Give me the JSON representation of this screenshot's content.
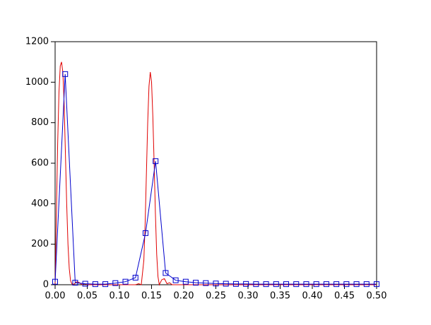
{
  "chart_data": {
    "type": "line",
    "xlim": [
      0,
      0.5
    ],
    "ylim": [
      0,
      1200
    ],
    "xticks": [
      {
        "value": 0,
        "label": "0.00"
      },
      {
        "value": 0.05,
        "label": "0.05"
      },
      {
        "value": 0.1,
        "label": "0.10"
      },
      {
        "value": 0.15,
        "label": "0.15"
      },
      {
        "value": 0.2,
        "label": "0.20"
      },
      {
        "value": 0.25,
        "label": "0.25"
      },
      {
        "value": 0.3,
        "label": "0.30"
      },
      {
        "value": 0.35,
        "label": "0.35"
      },
      {
        "value": 0.4,
        "label": "0.40"
      },
      {
        "value": 0.45,
        "label": "0.45"
      },
      {
        "value": 0.5,
        "label": "0.50"
      }
    ],
    "yticks": [
      0,
      200,
      400,
      600,
      800,
      1000,
      1200
    ],
    "series": [
      {
        "color": "#e00000",
        "marker": "none",
        "x": [
          0,
          0.002,
          0.004,
          0.006,
          0.008,
          0.01,
          0.012,
          0.014,
          0.016,
          0.018,
          0.02,
          0.022,
          0.024,
          0.026,
          0.028,
          0.03,
          0.034,
          0.038,
          0.042,
          0.046,
          0.05,
          0.06,
          0.07,
          0.08,
          0.09,
          0.1,
          0.11,
          0.12,
          0.125,
          0.13,
          0.134,
          0.138,
          0.14,
          0.142,
          0.144,
          0.146,
          0.148,
          0.15,
          0.152,
          0.154,
          0.156,
          0.158,
          0.16,
          0.162,
          0.166,
          0.17,
          0.174,
          0.178,
          0.182,
          0.19,
          0.2,
          0.25,
          0.3,
          0.35,
          0.4,
          0.45,
          0.5
        ],
        "values": [
          0,
          350,
          700,
          950,
          1080,
          1100,
          1050,
          900,
          650,
          400,
          200,
          80,
          20,
          5,
          0,
          5,
          15,
          10,
          0,
          5,
          0,
          0,
          0,
          0,
          0,
          0,
          0,
          0,
          0,
          5,
          0,
          120,
          300,
          550,
          800,
          980,
          1050,
          1000,
          830,
          600,
          350,
          150,
          40,
          0,
          25,
          30,
          5,
          10,
          0,
          0,
          0,
          0,
          0,
          0,
          0,
          0,
          0
        ]
      },
      {
        "color": "#0000cc",
        "marker": "square",
        "x": [
          0,
          0.015625,
          0.03125,
          0.046875,
          0.0625,
          0.078125,
          0.09375,
          0.109375,
          0.125,
          0.140625,
          0.15625,
          0.171875,
          0.1875,
          0.203125,
          0.21875,
          0.234375,
          0.25,
          0.265625,
          0.28125,
          0.296875,
          0.3125,
          0.328125,
          0.34375,
          0.359375,
          0.375,
          0.390625,
          0.40625,
          0.421875,
          0.4375,
          0.453125,
          0.46875,
          0.484375,
          0.5
        ],
        "values": [
          15,
          1040,
          10,
          5,
          3,
          3,
          8,
          15,
          35,
          255,
          610,
          58,
          22,
          15,
          10,
          8,
          6,
          5,
          4,
          4,
          3,
          3,
          3,
          3,
          3,
          3,
          3,
          3,
          3,
          3,
          3,
          3,
          3
        ]
      }
    ]
  }
}
